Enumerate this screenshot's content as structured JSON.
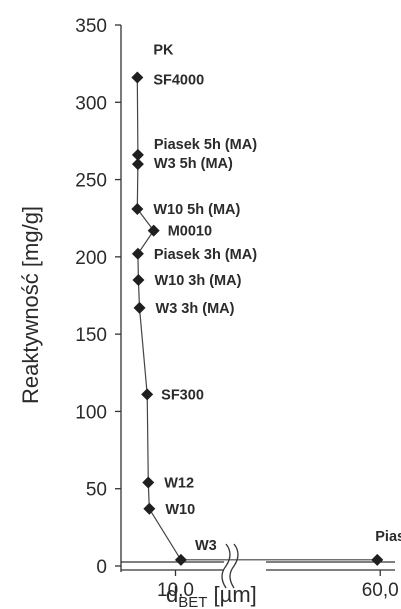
{
  "chart_data": {
    "type": "scatter",
    "ylabel": "Reaktywność [mg/g]",
    "xlabel": "d",
    "xlabel_sub": "BET",
    "xlabel_unit": " [µm]",
    "ylim": [
      0,
      350
    ],
    "yticks": [
      "0",
      "50",
      "100",
      "150",
      "200",
      "250",
      "300",
      "350"
    ],
    "ytick_values": [
      0,
      50,
      100,
      150,
      200,
      250,
      300,
      350
    ],
    "xticks": [
      {
        "label": "10,0",
        "value": 10
      },
      {
        "label": "60,0",
        "value": 60
      }
    ],
    "axis_break": true,
    "points": [
      {
        "label": "PK",
        "x": 3.0,
        "y": 316
      },
      {
        "label": "SF4000",
        "x": 3.0,
        "y": 316
      },
      {
        "label": "Piasek 5h (MA)",
        "x": 3.1,
        "y": 266
      },
      {
        "label": "W3 5h (MA)",
        "x": 3.1,
        "y": 260
      },
      {
        "label": "W10 5h (MA)",
        "x": 3.0,
        "y": 231
      },
      {
        "label": "M0010",
        "x": 6.0,
        "y": 217
      },
      {
        "label": "Piasek 3h (MA)",
        "x": 3.1,
        "y": 202
      },
      {
        "label": "W10 3h (MA)",
        "x": 3.2,
        "y": 185
      },
      {
        "label": "W3 3h (MA)",
        "x": 3.4,
        "y": 167
      },
      {
        "label": "SF300",
        "x": 4.8,
        "y": 111
      },
      {
        "label": "W12",
        "x": 5.0,
        "y": 54
      },
      {
        "label": "W10",
        "x": 5.2,
        "y": 37
      },
      {
        "label": "W3",
        "x": 11.0,
        "y": 4
      },
      {
        "label": "Piasek",
        "x": 59.0,
        "y": 4
      }
    ]
  }
}
